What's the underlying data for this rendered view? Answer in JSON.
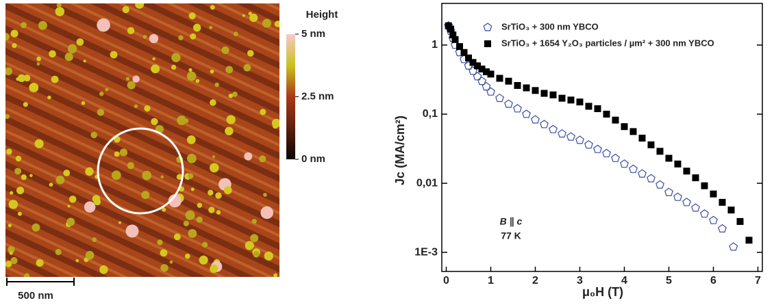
{
  "afm_image": {
    "colorbar": {
      "title": "Height",
      "lim": [
        0,
        5
      ],
      "ticks": [
        {
          "value": 5,
          "label": "5 nm"
        },
        {
          "value": 2.5,
          "label": "2.5 nm"
        },
        {
          "value": 0,
          "label": "0 nm"
        }
      ]
    },
    "scale_bar": {
      "label": "500 nm"
    }
  },
  "chart_data": {
    "type": "scatter",
    "x_label": "μ₀H (T)",
    "y_label": "Jc (MA/cm²)",
    "annotations": [
      "B ∥ c",
      "77 K"
    ],
    "xlim": [
      -0.1,
      7.1
    ],
    "xticks": [
      0,
      1,
      2,
      3,
      4,
      5,
      6,
      7
    ],
    "ylim": [
      0.00053,
      4
    ],
    "log_y": true,
    "yticks": [
      {
        "value": 0.001,
        "label": "1E-3"
      },
      {
        "value": 0.01,
        "label": "0,01"
      },
      {
        "value": 0.1,
        "label": "0,1"
      },
      1
    ],
    "legend": "upper right",
    "series": [
      {
        "name": "SrTiO₃ + 300 nm YBCO",
        "color": "#3b4a9e",
        "marker": "pentagon-open",
        "x": [
          0.05,
          0.1,
          0.15,
          0.2,
          0.3,
          0.4,
          0.5,
          0.6,
          0.7,
          0.8,
          0.9,
          1.0,
          1.2,
          1.4,
          1.6,
          1.8,
          2.0,
          2.2,
          2.4,
          2.6,
          2.8,
          3.0,
          3.2,
          3.4,
          3.6,
          3.8,
          4.0,
          4.2,
          4.4,
          4.6,
          4.8,
          5.0,
          5.2,
          5.4,
          5.6,
          5.8,
          6.0,
          6.2,
          6.45
        ],
        "values": [
          1.9,
          1.6,
          1.25,
          1.0,
          0.78,
          0.62,
          0.5,
          0.42,
          0.35,
          0.3,
          0.25,
          0.21,
          0.17,
          0.14,
          0.12,
          0.1,
          0.083,
          0.071,
          0.06,
          0.052,
          0.047,
          0.042,
          0.036,
          0.031,
          0.027,
          0.023,
          0.019,
          0.016,
          0.0137,
          0.0117,
          0.0095,
          0.0074,
          0.0063,
          0.0053,
          0.0044,
          0.0036,
          0.0029,
          0.0022,
          0.0012
        ]
      },
      {
        "name": "SrTiO₃ + 1654 Y₂O₃ particles / µm² + 300 nm YBCO",
        "color": "#000000",
        "marker": "square-filled",
        "x": [
          0.05,
          0.1,
          0.15,
          0.2,
          0.3,
          0.4,
          0.5,
          0.6,
          0.7,
          0.8,
          0.9,
          1.0,
          1.2,
          1.4,
          1.6,
          1.8,
          2.0,
          2.2,
          2.4,
          2.6,
          2.8,
          3.0,
          3.2,
          3.4,
          3.6,
          3.8,
          4.0,
          4.2,
          4.4,
          4.6,
          4.8,
          5.0,
          5.2,
          5.4,
          5.6,
          5.8,
          6.0,
          6.2,
          6.4,
          6.6,
          6.8
        ],
        "values": [
          1.9,
          1.7,
          1.4,
          1.2,
          0.95,
          0.78,
          0.65,
          0.56,
          0.5,
          0.45,
          0.41,
          0.38,
          0.33,
          0.3,
          0.26,
          0.24,
          0.22,
          0.2,
          0.19,
          0.17,
          0.16,
          0.15,
          0.13,
          0.12,
          0.1,
          0.082,
          0.066,
          0.056,
          0.045,
          0.036,
          0.029,
          0.023,
          0.019,
          0.015,
          0.012,
          0.0092,
          0.007,
          0.0053,
          0.0041,
          0.0028,
          0.0015
        ]
      }
    ]
  }
}
